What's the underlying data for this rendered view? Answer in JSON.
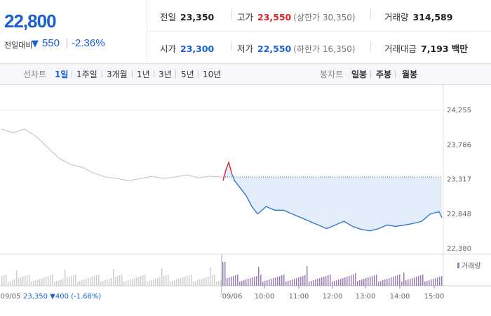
{
  "summary": {
    "price": "22,800",
    "diff_label": "전일대비",
    "diff_arrow": "▼",
    "diff_value": "550",
    "diff_pct": "-2.36%"
  },
  "stats": {
    "prev_label": "전일",
    "prev_value": "23,350",
    "high_label": "고가",
    "high_value": "23,550",
    "upper_limit": "(상한가 30,350)",
    "volume_label": "거래량",
    "volume_value": "314,589",
    "open_label": "시가",
    "open_value": "23,300",
    "low_label": "저가",
    "low_value": "22,550",
    "lower_limit": "(하한가 16,350)",
    "amount_label": "거래대금",
    "amount_value": "7,193 백만"
  },
  "tabs": {
    "line_label": "선차트",
    "line_tabs": [
      "1일",
      "1주일",
      "3개월",
      "1년",
      "3년",
      "5년",
      "10년"
    ],
    "active": "1일",
    "candle_label": "봉차트",
    "candle_tabs": [
      "일봉",
      "주봉",
      "월봉"
    ]
  },
  "chart_data": {
    "type": "line",
    "ylim": [
      22380,
      24255
    ],
    "y_ticks": [
      "24,255",
      "23,786",
      "23,317",
      "22,848",
      "22,380"
    ],
    "x_ticks": [
      "09/05",
      "09/06",
      "10:00",
      "11:00",
      "12:00",
      "13:00",
      "14:00",
      "15:00"
    ],
    "prev_close": 23350,
    "prev_day_caption": "09/05  23,350 ▼400 (-1.68%)",
    "volume_legend": "거래량",
    "colors": {
      "prev_day": "#c8c8c8",
      "today": "#3377cc",
      "fill": "#e3ecf9",
      "opening": "#e0242b",
      "volume": "#9b7fb8"
    },
    "series": [
      {
        "x": [
          "09:00",
          "09:20",
          "09:40",
          "10:00",
          "10:20",
          "10:40",
          "11:00",
          "11:20",
          "11:40",
          "12:00",
          "12:20",
          "12:40",
          "13:00",
          "13:20",
          "13:40",
          "14:00",
          "14:20",
          "14:40",
          "15:00",
          "15:20"
        ],
        "values": [
          24000,
          23950,
          24000,
          23900,
          23750,
          23600,
          23520,
          23480,
          23400,
          23350,
          23330,
          23300,
          23330,
          23360,
          23330,
          23350,
          23380,
          23340,
          23360,
          23350
        ]
      },
      {
        "x": [
          "09:00",
          "09:05",
          "09:10",
          "09:15",
          "09:20",
          "09:30",
          "09:40",
          "09:50",
          "10:00",
          "10:15",
          "10:30",
          "10:45",
          "11:00",
          "11:15",
          "11:30",
          "11:45",
          "12:00",
          "12:15",
          "12:30",
          "12:45",
          "13:00",
          "13:15",
          "13:30",
          "13:45",
          "14:00",
          "14:15",
          "14:30",
          "14:45",
          "15:00",
          "15:15",
          "15:20"
        ],
        "values": [
          23300,
          23450,
          23550,
          23400,
          23300,
          23200,
          23100,
          22950,
          22850,
          22950,
          22900,
          22900,
          22850,
          22800,
          22750,
          22700,
          22650,
          22700,
          22750,
          22680,
          22640,
          22620,
          22650,
          22700,
          22680,
          22700,
          22720,
          22750,
          22850,
          22880,
          22800
        ]
      }
    ]
  }
}
